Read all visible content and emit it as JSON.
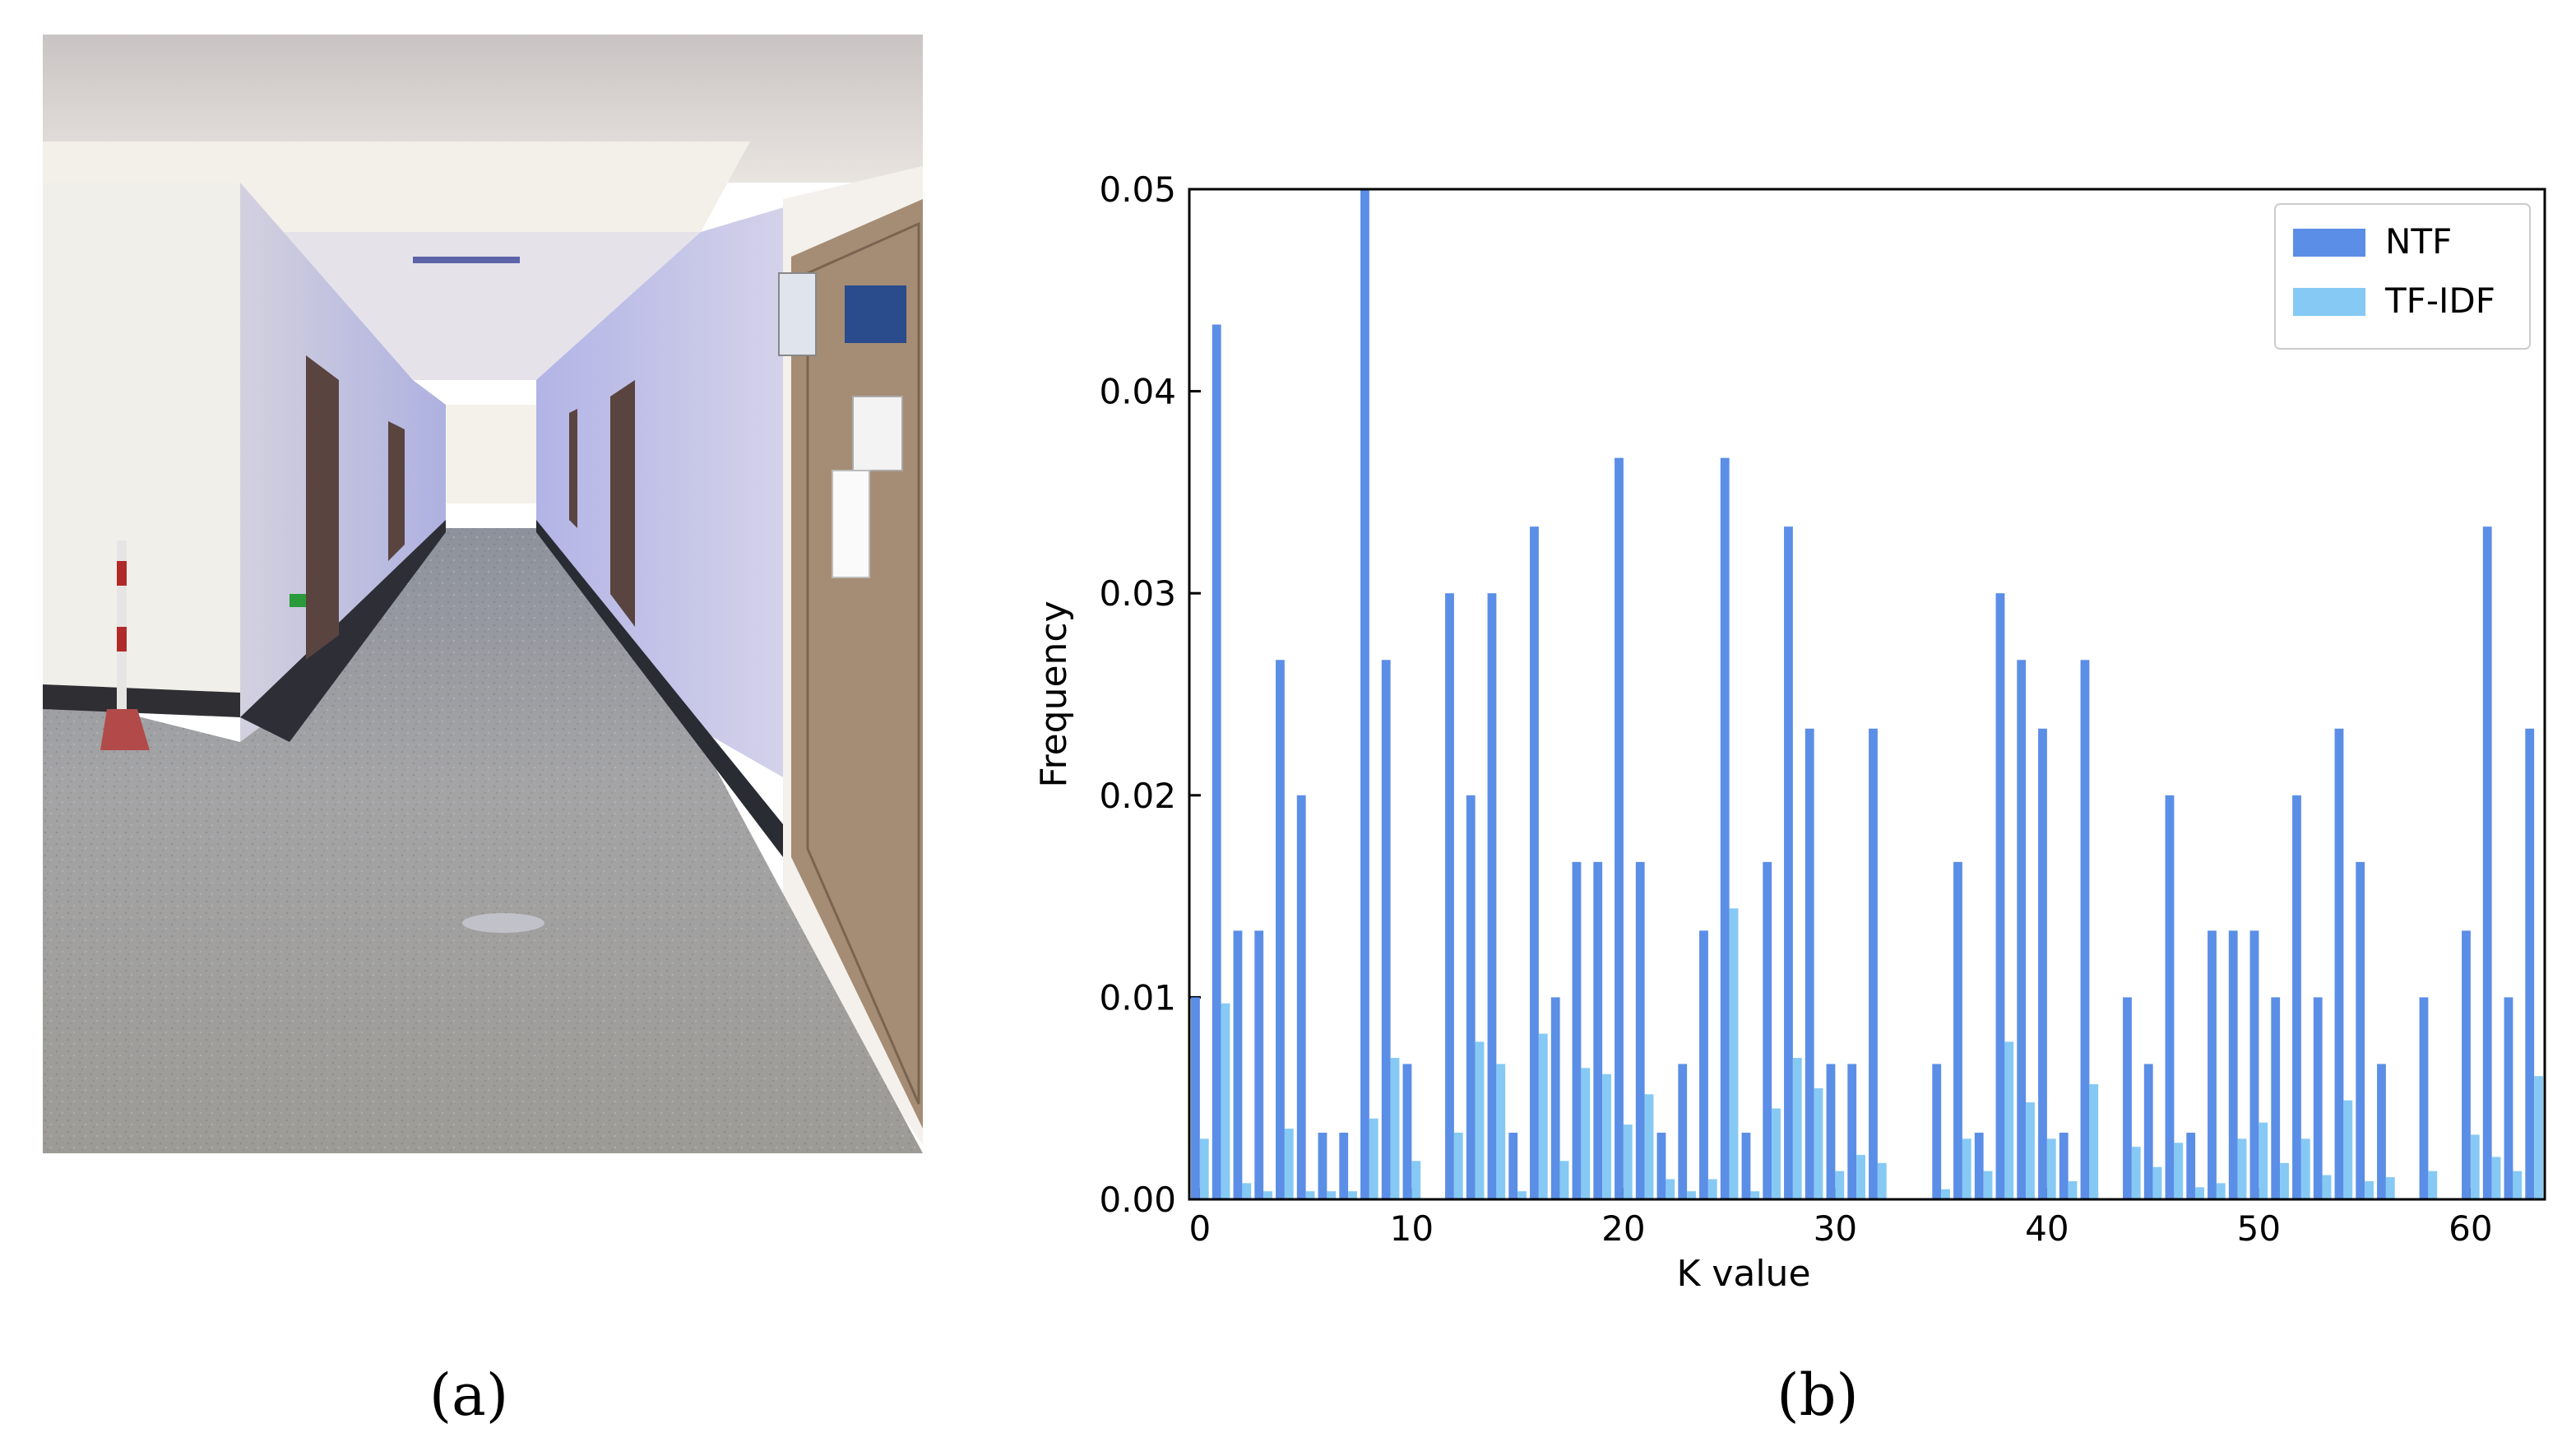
{
  "panels": {
    "a_label": "(a)",
    "b_label": "(b)"
  },
  "photo": {
    "subject": "hallway-photo"
  },
  "colors": {
    "ntf": "#5b8ee6",
    "tfidf": "#86c9f4",
    "axis": "#000000"
  },
  "chart_data": {
    "type": "bar",
    "xlabel": "K value",
    "ylabel": "Frequency",
    "xlim": [
      -0.5,
      63.5
    ],
    "ylim": [
      0,
      0.05
    ],
    "xticks": [
      0,
      10,
      20,
      30,
      40,
      50,
      60
    ],
    "xtick_labels": [
      "0",
      "10",
      "20",
      "30",
      "40",
      "50",
      "60"
    ],
    "yticks": [
      0,
      0.01,
      0.02,
      0.03,
      0.04,
      0.05
    ],
    "ytick_labels": [
      "0.00",
      "0.01",
      "0.02",
      "0.03",
      "0.04",
      "0.05"
    ],
    "grid": false,
    "legend": {
      "position": "top-right"
    },
    "x": [
      0,
      1,
      2,
      3,
      4,
      5,
      6,
      7,
      8,
      9,
      10,
      11,
      12,
      13,
      14,
      15,
      16,
      17,
      18,
      19,
      20,
      21,
      22,
      23,
      24,
      25,
      26,
      27,
      28,
      29,
      30,
      31,
      32,
      33,
      34,
      35,
      36,
      37,
      38,
      39,
      40,
      41,
      42,
      43,
      44,
      45,
      46,
      47,
      48,
      49,
      50,
      51,
      52,
      53,
      54,
      55,
      56,
      57,
      58,
      59,
      60,
      61,
      62,
      63
    ],
    "series": [
      {
        "name": "NTF",
        "values": [
          0.01,
          0.0433,
          0.0133,
          0.0133,
          0.0267,
          0.02,
          0.0033,
          0.0033,
          0.05,
          0.0267,
          0.0067,
          0,
          0.03,
          0.02,
          0.03,
          0.0033,
          0.0333,
          0.01,
          0.0167,
          0.0167,
          0.0367,
          0.0167,
          0.0033,
          0.0067,
          0.0133,
          0.0367,
          0.0033,
          0.0167,
          0.0333,
          0.0233,
          0.0067,
          0.0067,
          0.0233,
          0,
          0,
          0.0067,
          0.0167,
          0.0033,
          0.03,
          0.0267,
          0.0233,
          0.0033,
          0.0267,
          0,
          0.01,
          0.0067,
          0.02,
          0.0033,
          0.0133,
          0.0133,
          0.0133,
          0.01,
          0.02,
          0.01,
          0.0233,
          0.0167,
          0.0067,
          0,
          0.01,
          0,
          0.0133,
          0.0333,
          0.01,
          0.0233
        ]
      },
      {
        "name": "TF-IDF",
        "values": [
          0.003,
          0.0097,
          0.0008,
          0.0004,
          0.0035,
          0.0004,
          0.0004,
          0.0004,
          0.004,
          0.007,
          0.0019,
          0,
          0.0033,
          0.0078,
          0.0067,
          0.0004,
          0.0082,
          0.0019,
          0.0065,
          0.0062,
          0.0037,
          0.0052,
          0.001,
          0.0004,
          0.001,
          0.0144,
          0.0004,
          0.0045,
          0.007,
          0.0055,
          0.0014,
          0.0022,
          0.0018,
          0,
          0,
          0.0005,
          0.003,
          0.0014,
          0.0078,
          0.0048,
          0.003,
          0.0009,
          0.0057,
          0,
          0.0026,
          0.0016,
          0.0028,
          0.0006,
          0.0008,
          0.003,
          0.0038,
          0.0018,
          0.003,
          0.0012,
          0.0049,
          0.0009,
          0.0011,
          0,
          0.0014,
          0,
          0.0032,
          0.0021,
          0.0014,
          0.0061
        ]
      }
    ]
  }
}
